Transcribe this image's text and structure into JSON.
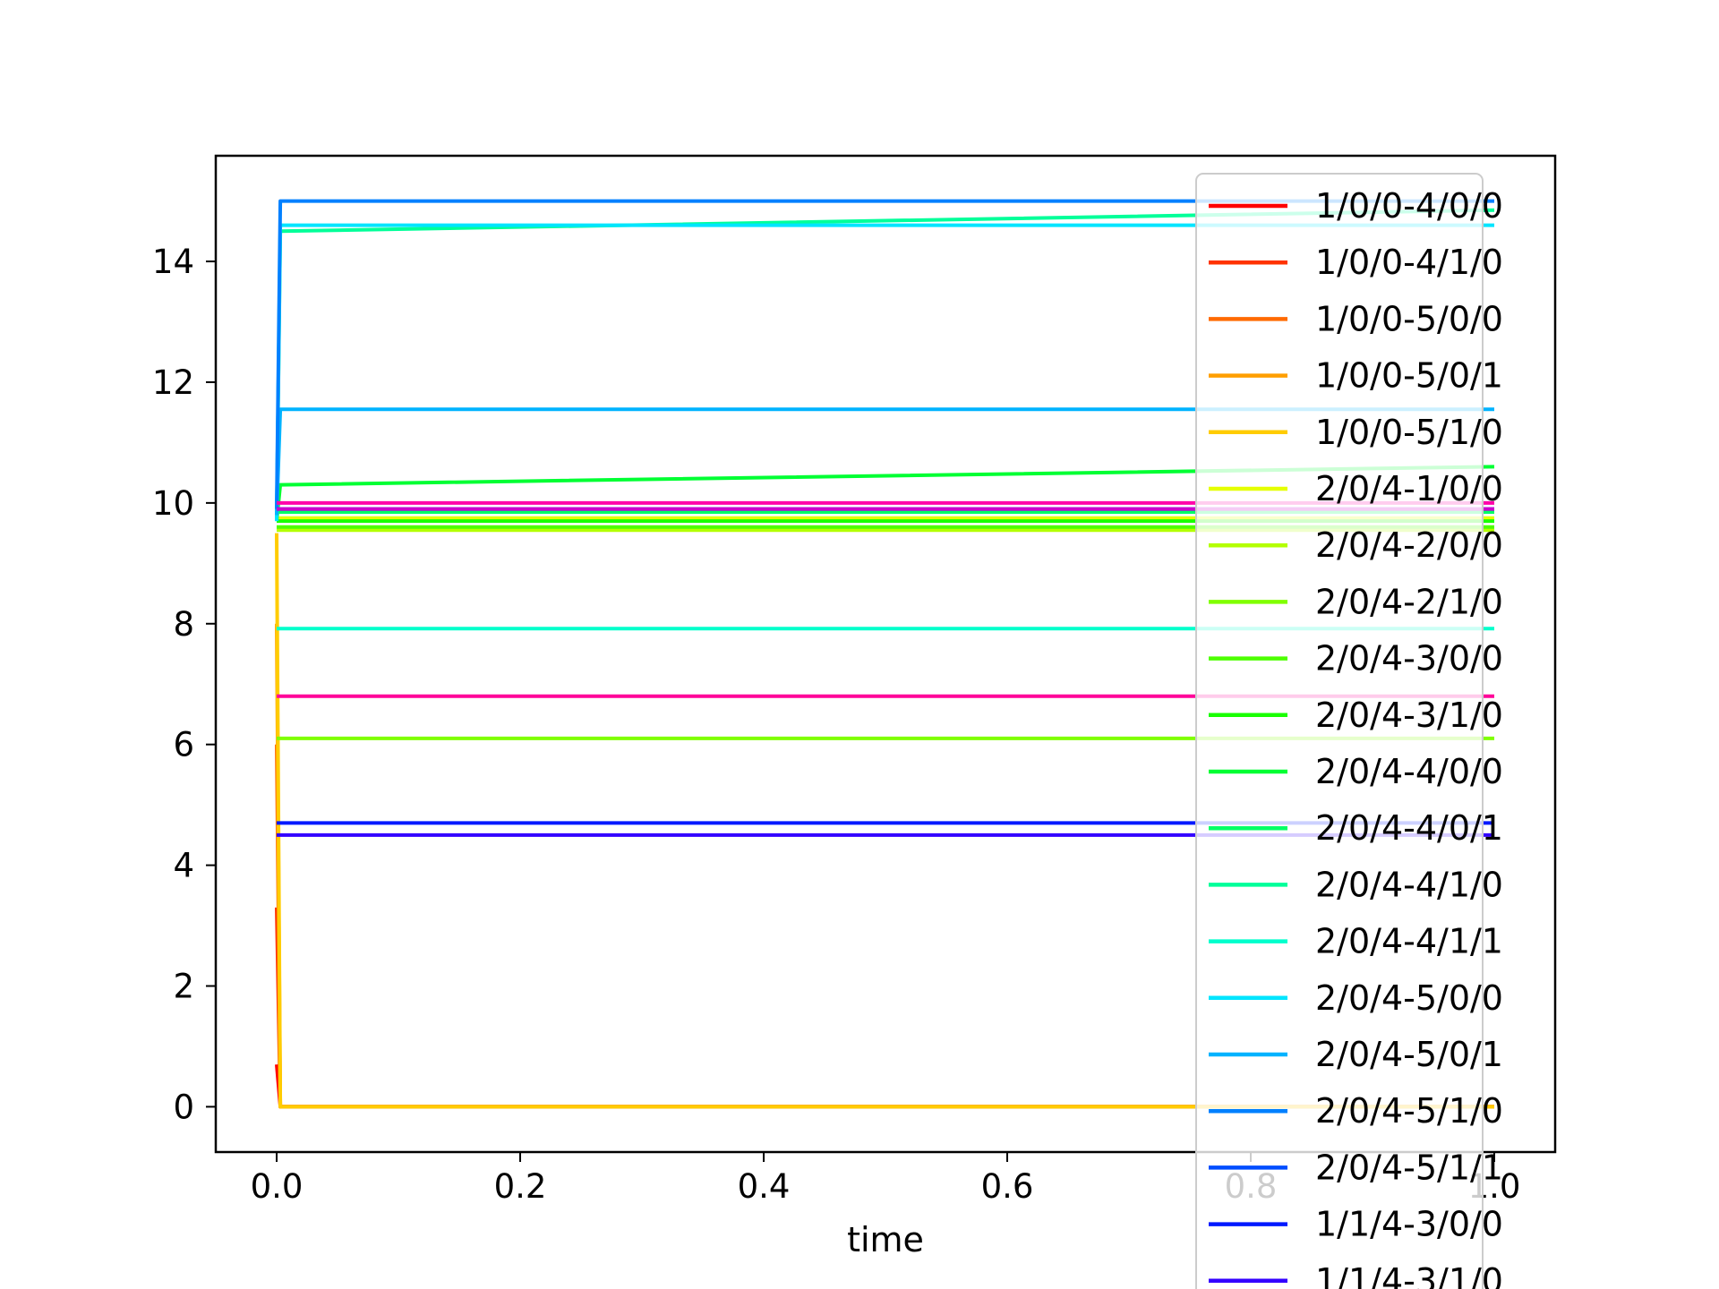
{
  "chart_data": {
    "type": "line",
    "title": "",
    "xlabel": "time",
    "ylabel": "",
    "xlim": [
      -0.05,
      1.05
    ],
    "ylim": [
      -0.75,
      15.75
    ],
    "xticks": [
      "0.0",
      "0.2",
      "0.4",
      "0.6",
      "0.8",
      "1.0"
    ],
    "xtick_values": [
      0.0,
      0.2,
      0.4,
      0.6,
      0.8,
      1.0
    ],
    "yticks": [
      "0",
      "2",
      "4",
      "6",
      "8",
      "10",
      "12",
      "14"
    ],
    "ytick_values": [
      0,
      2,
      4,
      6,
      8,
      10,
      12,
      14
    ],
    "grid": false,
    "legend_position": "upper right",
    "series": [
      {
        "name": "1/0/0-4/0/0",
        "color": "#ff0000",
        "x": [
          0,
          0.003,
          1.0
        ],
        "y": [
          0.7,
          0.0,
          0.0
        ]
      },
      {
        "name": "1/0/0-4/1/0",
        "color": "#ff3300",
        "x": [
          0,
          0.003,
          1.0
        ],
        "y": [
          3.3,
          0.0,
          0.0
        ]
      },
      {
        "name": "1/0/0-5/0/0",
        "color": "#ff6a00",
        "x": [
          0,
          0.003,
          1.0
        ],
        "y": [
          6.0,
          0.0,
          0.0
        ]
      },
      {
        "name": "1/0/0-5/0/1",
        "color": "#ff9f00",
        "x": [
          0,
          0.003,
          1.0
        ],
        "y": [
          8.0,
          0.0,
          0.0
        ]
      },
      {
        "name": "1/0/0-5/1/0",
        "color": "#ffcc00",
        "x": [
          0,
          0.003,
          1.0
        ],
        "y": [
          9.5,
          0.0,
          0.0
        ]
      },
      {
        "name": "2/0/4-1/0/0",
        "color": "#e5ff00",
        "x": [
          0,
          1.0
        ],
        "y": [
          9.75,
          9.75
        ]
      },
      {
        "name": "2/0/4-2/0/0",
        "color": "#b3ff00",
        "x": [
          0,
          1.0
        ],
        "y": [
          9.55,
          9.55
        ]
      },
      {
        "name": "2/0/4-2/1/0",
        "color": "#80ff00",
        "x": [
          0,
          1.0
        ],
        "y": [
          6.1,
          6.1
        ]
      },
      {
        "name": "2/0/4-3/0/0",
        "color": "#4dff00",
        "x": [
          0,
          1.0
        ],
        "y": [
          9.6,
          9.6
        ]
      },
      {
        "name": "2/0/4-3/1/0",
        "color": "#19ff00",
        "x": [
          0,
          1.0
        ],
        "y": [
          9.7,
          9.7
        ]
      },
      {
        "name": "2/0/4-4/0/0",
        "color": "#00ff33",
        "x": [
          0,
          0.003,
          1.0
        ],
        "y": [
          9.7,
          10.3,
          10.6
        ]
      },
      {
        "name": "2/0/4-4/0/1",
        "color": "#00ff66",
        "x": [
          0,
          1.0
        ],
        "y": [
          9.85,
          9.85
        ]
      },
      {
        "name": "2/0/4-4/1/0",
        "color": "#00ff99",
        "x": [
          0,
          0.003,
          1.0
        ],
        "y": [
          9.7,
          14.5,
          14.85
        ]
      },
      {
        "name": "2/0/4-4/1/1",
        "color": "#00ffcc",
        "x": [
          0,
          1.0
        ],
        "y": [
          7.92,
          7.92
        ]
      },
      {
        "name": "2/0/4-5/0/0",
        "color": "#00e5ff",
        "x": [
          0,
          0.003,
          1.0
        ],
        "y": [
          9.7,
          14.6,
          14.6
        ]
      },
      {
        "name": "2/0/4-5/0/1",
        "color": "#00b3ff",
        "x": [
          0,
          0.003,
          1.0
        ],
        "y": [
          9.8,
          11.55,
          11.55
        ]
      },
      {
        "name": "2/0/4-5/1/0",
        "color": "#0080ff",
        "x": [
          0,
          0.003,
          1.0
        ],
        "y": [
          9.9,
          15.0,
          15.0
        ]
      },
      {
        "name": "2/0/4-5/1/1",
        "color": "#004dff",
        "x": [
          0,
          1.0
        ],
        "y": [
          9.9,
          9.9
        ]
      },
      {
        "name": "1/1/4-3/0/0",
        "color": "#0019ff",
        "x": [
          0,
          1.0
        ],
        "y": [
          4.7,
          4.7
        ]
      },
      {
        "name": "1/1/4-3/1/0",
        "color": "#3300ff",
        "x": [
          0,
          1.0
        ],
        "y": [
          4.5,
          4.5
        ]
      },
      {
        "name": "",
        "color": "#cc00cc",
        "x": [
          0,
          1.0
        ],
        "y": [
          9.9,
          9.9
        ]
      },
      {
        "name": "",
        "color": "#ff0099",
        "x": [
          0,
          1.0
        ],
        "y": [
          6.8,
          6.8
        ]
      },
      {
        "name": "",
        "color": "#ff00aa",
        "x": [
          0,
          1.0
        ],
        "y": [
          10.0,
          10.0
        ]
      }
    ]
  }
}
